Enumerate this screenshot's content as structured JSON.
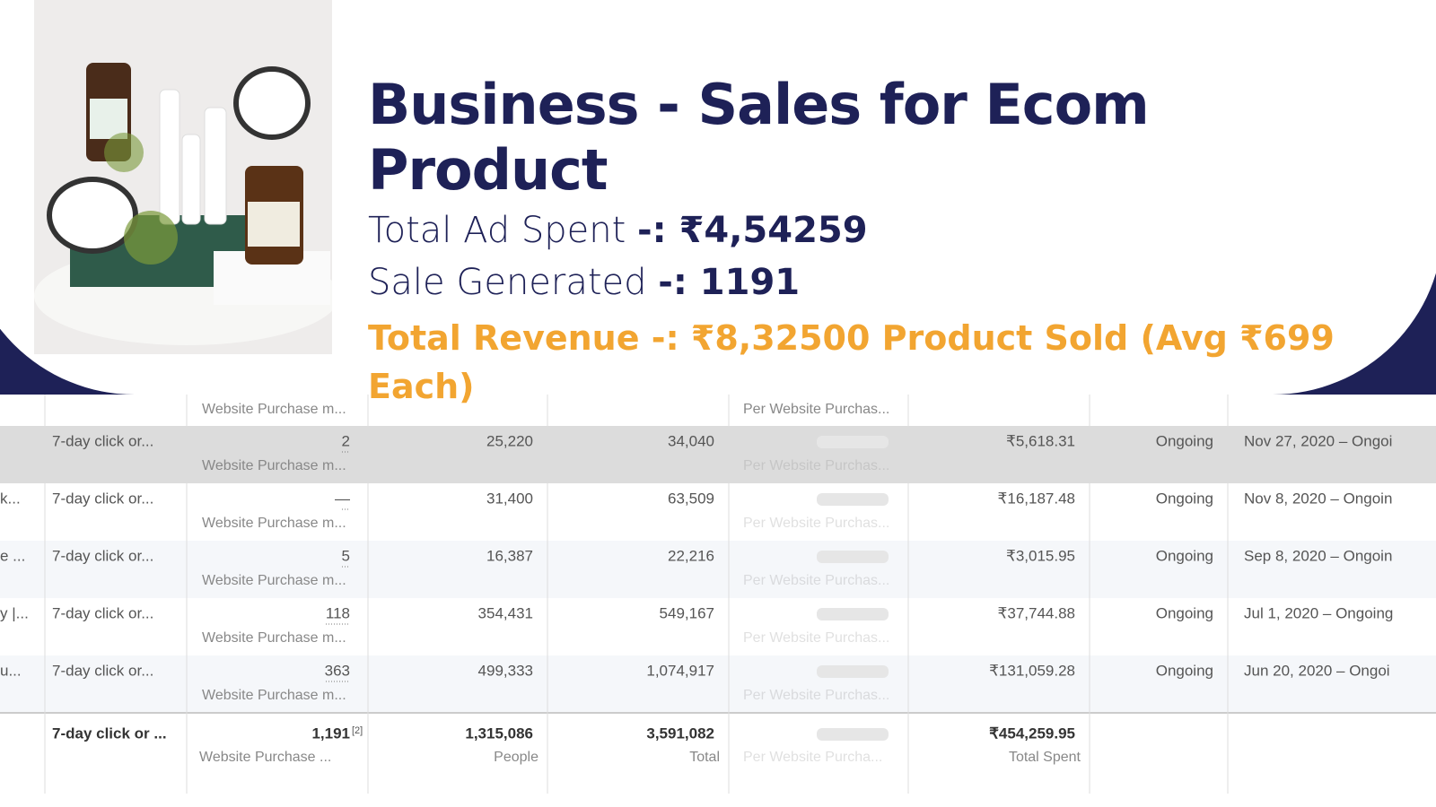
{
  "header": {
    "title": "Business - Sales for Ecom Product",
    "lines": [
      {
        "label": "Total Ad Spent",
        "value": "-: ₹4,54259"
      },
      {
        "label": "Sale Generated",
        "value": "-: 1191"
      }
    ],
    "highlight": "Total Revenue -:  ₹8,32500  Product Sold (Avg ₹699 Each)"
  },
  "table": {
    "rows": [
      [
        {},
        {},
        {
          "sub": "Website Purchase m..."
        },
        {},
        {},
        {
          "sub": "Per Website Purchas..."
        },
        {},
        {},
        {}
      ],
      [
        {},
        {
          "text": "7-day click or..."
        },
        {
          "text": "2",
          "sub": "Website Purchase m..."
        },
        {
          "text": "25,220"
        },
        {
          "text": "34,040"
        },
        {
          "sub": "Per Website Purchas..."
        },
        {
          "text": "₹5,618.31"
        },
        {
          "text": "Ongoing"
        },
        {
          "text": "Nov 27, 2020 – Ongoi"
        }
      ],
      [
        {
          "text": "k..."
        },
        {
          "text": "7-day click or..."
        },
        {
          "text": "—",
          "sub": "Website Purchase m..."
        },
        {
          "text": "31,400"
        },
        {
          "text": "63,509"
        },
        {
          "sub": "Per Website Purchas..."
        },
        {
          "text": "₹16,187.48"
        },
        {
          "text": "Ongoing"
        },
        {
          "text": "Nov 8, 2020 – Ongoin"
        }
      ],
      [
        {
          "text": "e ..."
        },
        {
          "text": "7-day click or..."
        },
        {
          "text": "5",
          "sub": "Website Purchase m..."
        },
        {
          "text": "16,387"
        },
        {
          "text": "22,216"
        },
        {
          "sub": "Per Website Purchas..."
        },
        {
          "text": "₹3,015.95"
        },
        {
          "text": "Ongoing"
        },
        {
          "text": "Sep 8, 2020 – Ongoin"
        }
      ],
      [
        {
          "text": "y |..."
        },
        {
          "text": "7-day click or..."
        },
        {
          "text": "118",
          "sub": "Website Purchase m..."
        },
        {
          "text": "354,431"
        },
        {
          "text": "549,167"
        },
        {
          "sub": "Per Website Purchas..."
        },
        {
          "text": "₹37,744.88"
        },
        {
          "text": "Ongoing"
        },
        {
          "text": "Jul 1, 2020 – Ongoing"
        }
      ],
      [
        {
          "text": "u..."
        },
        {
          "text": "7-day click or..."
        },
        {
          "text": "363",
          "sub": "Website Purchase m..."
        },
        {
          "text": "499,333"
        },
        {
          "text": "1,074,917"
        },
        {
          "sub": "Per Website Purchas..."
        },
        {
          "text": "₹131,059.28"
        },
        {
          "text": "Ongoing"
        },
        {
          "text": "Jun 20, 2020 – Ongoi"
        }
      ],
      [
        {},
        {
          "text": "7-day click or ..."
        },
        {
          "text": "1,191",
          "note": "[2]",
          "sub": "Website Purchase ..."
        },
        {
          "text": "1,315,086",
          "sub": "People"
        },
        {
          "text": "3,591,082",
          "sub": "Total"
        },
        {
          "sub": "Per Website Purcha..."
        },
        {
          "text": "₹454,259.95",
          "sub": "Total Spent"
        },
        {},
        {}
      ]
    ]
  }
}
